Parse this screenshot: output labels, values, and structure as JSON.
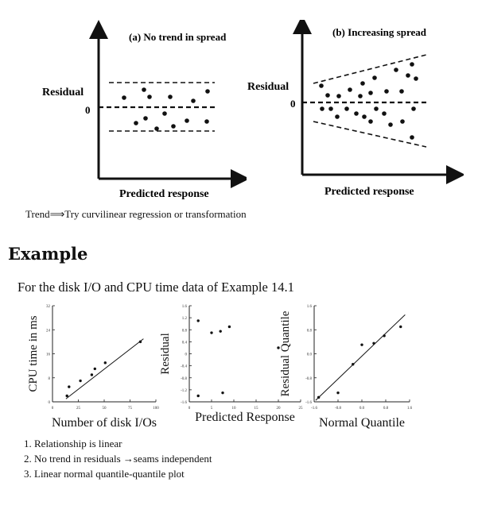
{
  "top_figures": [
    {
      "title": "(a) No trend in spread",
      "ylabel": "Residual",
      "xlabel": "Predicted response",
      "zero_label": "0"
    },
    {
      "title": "(b) Increasing spread",
      "ylabel": "Residual",
      "xlabel": "Predicted response",
      "zero_label": "0"
    }
  ],
  "trend_text": "Trend⟹Try curvilinear regression or transformation",
  "heading": "Example",
  "intro": "For the disk I/O and CPU time data of Example 14.1",
  "chart_data": [
    {
      "type": "scatter",
      "xlabel": "Number of disk I/Os",
      "ylabel": "CPU time in ms",
      "x_ticks": [
        "0",
        "25",
        "50",
        "75",
        "100"
      ],
      "y_ticks": [
        "0",
        "8",
        "16",
        "24",
        "32"
      ],
      "xlim": [
        0,
        100
      ],
      "ylim": [
        0,
        32
      ],
      "points": [
        [
          14,
          2
        ],
        [
          16,
          5
        ],
        [
          27,
          7
        ],
        [
          38,
          9
        ],
        [
          41,
          11
        ],
        [
          51,
          13
        ],
        [
          85,
          20
        ]
      ],
      "fit_line": [
        [
          13,
          1
        ],
        [
          88,
          21
        ]
      ]
    },
    {
      "type": "scatter",
      "xlabel": "Predicted Response",
      "ylabel": "Residual",
      "x_ticks": [
        "0",
        "5",
        "10",
        "15",
        "20",
        "25"
      ],
      "y_ticks": [
        "-1.6",
        "-1.2",
        "-0.8",
        "-0.4",
        "0",
        "0.4",
        "0.8",
        "1.2",
        "1.6"
      ],
      "xlim": [
        0,
        25
      ],
      "ylim": [
        -1.6,
        1.6
      ],
      "points": [
        [
          2,
          1.1
        ],
        [
          5,
          0.7
        ],
        [
          7,
          0.75
        ],
        [
          9,
          0.9
        ],
        [
          20,
          0.2
        ],
        [
          2,
          -1.4
        ],
        [
          7.5,
          -1.3
        ]
      ]
    },
    {
      "type": "scatter",
      "xlabel": "Normal Quantile",
      "ylabel": "Residual Quantile",
      "x_ticks": [
        "-1.6",
        "-0.8",
        "0.0",
        "0.8",
        "1.6"
      ],
      "y_ticks": [
        "-1.6",
        "-0.8",
        "0.0",
        "0.8",
        "1.6"
      ],
      "xlim": [
        -1.6,
        1.6
      ],
      "ylim": [
        -1.6,
        1.6
      ],
      "points": [
        [
          -1.45,
          -1.45
        ],
        [
          -0.8,
          -1.3
        ],
        [
          -0.3,
          -0.35
        ],
        [
          0,
          0.3
        ],
        [
          0.4,
          0.35
        ],
        [
          0.75,
          0.6
        ],
        [
          1.3,
          0.9
        ]
      ],
      "fit_line": [
        [
          -1.55,
          -1.55
        ],
        [
          1.45,
          1.3
        ]
      ]
    }
  ],
  "points": [
    "1. Relationship is linear",
    "2. No trend in residuals →seams independent",
    "3. Linear normal quantile-quantile plot"
  ]
}
